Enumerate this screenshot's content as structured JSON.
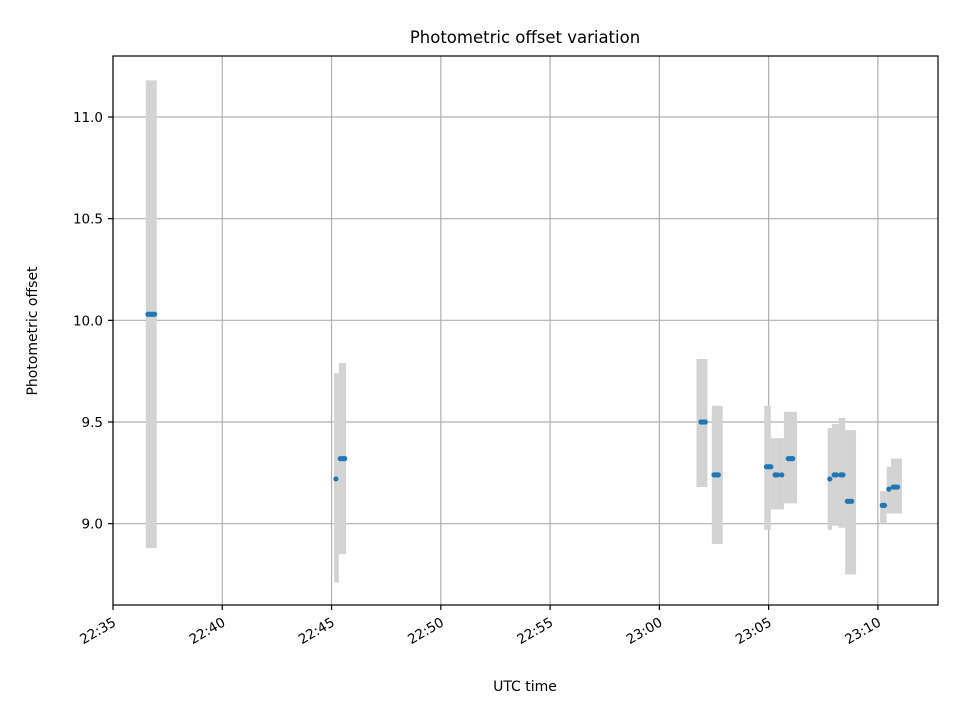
{
  "colors": {
    "point": "#1f77b4",
    "error_band": "#d3d3d3",
    "grid": "#b0b0b0",
    "axes": "#000000"
  },
  "chart_data": {
    "type": "scatter",
    "title": "Photometric offset variation",
    "xlabel": "UTC time",
    "ylabel": "Photometric offset",
    "xlim": [
      "22:35:00",
      "23:12:45"
    ],
    "ylim": [
      8.6,
      11.3
    ],
    "grid": true,
    "legend": "none",
    "x_ticks": [
      "22:35",
      "22:40",
      "22:45",
      "22:50",
      "22:55",
      "23:00",
      "23:05",
      "23:10"
    ],
    "y_ticks": [
      "9.0",
      "9.5",
      "10.0",
      "10.5",
      "11.0"
    ],
    "error_bands": [
      {
        "x_start": "22:36:30",
        "x_end": "22:37:00",
        "low": 8.88,
        "high": 11.18
      },
      {
        "x_start": "22:45:07",
        "x_end": "22:45:20",
        "low": 8.71,
        "high": 9.74
      },
      {
        "x_start": "22:45:20",
        "x_end": "22:45:40",
        "low": 8.85,
        "high": 9.79
      },
      {
        "x_start": "23:01:42",
        "x_end": "23:02:12",
        "low": 9.18,
        "high": 9.81
      },
      {
        "x_start": "23:02:24",
        "x_end": "23:02:54",
        "low": 8.9,
        "high": 9.58
      },
      {
        "x_start": "23:04:48",
        "x_end": "23:05:06",
        "low": 8.97,
        "high": 9.58
      },
      {
        "x_start": "23:05:06",
        "x_end": "23:05:42",
        "low": 9.07,
        "high": 9.42
      },
      {
        "x_start": "23:05:42",
        "x_end": "23:06:18",
        "low": 9.1,
        "high": 9.55
      },
      {
        "x_start": "23:07:42",
        "x_end": "23:07:54",
        "low": 8.97,
        "high": 9.47
      },
      {
        "x_start": "23:07:54",
        "x_end": "23:08:12",
        "low": 8.99,
        "high": 9.49
      },
      {
        "x_start": "23:08:12",
        "x_end": "23:08:30",
        "low": 8.98,
        "high": 9.52
      },
      {
        "x_start": "23:08:30",
        "x_end": "23:09:00",
        "low": 8.75,
        "high": 9.46
      },
      {
        "x_start": "23:10:06",
        "x_end": "23:10:24",
        "low": 9.0,
        "high": 9.16
      },
      {
        "x_start": "23:10:24",
        "x_end": "23:10:36",
        "low": 9.05,
        "high": 9.28
      },
      {
        "x_start": "23:10:36",
        "x_end": "23:11:06",
        "low": 9.05,
        "high": 9.32
      }
    ],
    "points": [
      {
        "x": "22:36:36",
        "y": 10.03
      },
      {
        "x": "22:36:42",
        "y": 10.03
      },
      {
        "x": "22:36:48",
        "y": 10.03
      },
      {
        "x": "22:36:54",
        "y": 10.03
      },
      {
        "x": "22:45:12",
        "y": 9.22
      },
      {
        "x": "22:45:24",
        "y": 9.32
      },
      {
        "x": "22:45:30",
        "y": 9.32
      },
      {
        "x": "22:45:36",
        "y": 9.32
      },
      {
        "x": "23:01:54",
        "y": 9.5
      },
      {
        "x": "23:02:00",
        "y": 9.5
      },
      {
        "x": "23:02:06",
        "y": 9.5
      },
      {
        "x": "23:02:30",
        "y": 9.24
      },
      {
        "x": "23:02:36",
        "y": 9.24
      },
      {
        "x": "23:02:42",
        "y": 9.24
      },
      {
        "x": "23:04:54",
        "y": 9.28
      },
      {
        "x": "23:05:00",
        "y": 9.28
      },
      {
        "x": "23:05:06",
        "y": 9.28
      },
      {
        "x": "23:05:18",
        "y": 9.24
      },
      {
        "x": "23:05:24",
        "y": 9.24
      },
      {
        "x": "23:05:36",
        "y": 9.24
      },
      {
        "x": "23:05:54",
        "y": 9.32
      },
      {
        "x": "23:06:00",
        "y": 9.32
      },
      {
        "x": "23:06:06",
        "y": 9.32
      },
      {
        "x": "23:07:48",
        "y": 9.22
      },
      {
        "x": "23:08:00",
        "y": 9.24
      },
      {
        "x": "23:08:06",
        "y": 9.24
      },
      {
        "x": "23:08:18",
        "y": 9.24
      },
      {
        "x": "23:08:24",
        "y": 9.24
      },
      {
        "x": "23:08:36",
        "y": 9.11
      },
      {
        "x": "23:08:42",
        "y": 9.11
      },
      {
        "x": "23:08:48",
        "y": 9.11
      },
      {
        "x": "23:10:12",
        "y": 9.09
      },
      {
        "x": "23:10:18",
        "y": 9.09
      },
      {
        "x": "23:10:30",
        "y": 9.17
      },
      {
        "x": "23:10:42",
        "y": 9.18
      },
      {
        "x": "23:10:48",
        "y": 9.18
      },
      {
        "x": "23:10:54",
        "y": 9.18
      }
    ]
  }
}
